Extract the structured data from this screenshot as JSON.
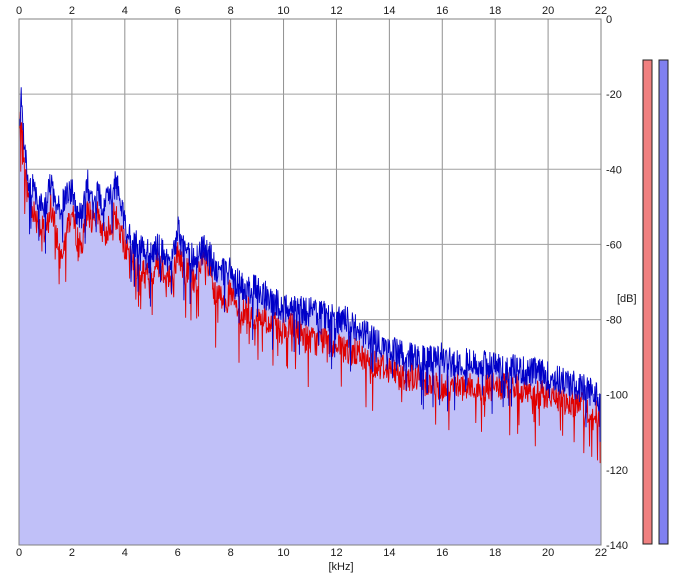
{
  "chart_data": {
    "type": "area",
    "xlabel": "[kHz]",
    "ylabel": "[dB]",
    "xlim": [
      0,
      22
    ],
    "ylim": [
      -140,
      0
    ],
    "x_ticks": [
      "0",
      "2",
      "4",
      "6",
      "8",
      "10",
      "12",
      "14",
      "16",
      "18",
      "20",
      "22"
    ],
    "y_ticks": [
      "0",
      "-20",
      "-40",
      "-60",
      "-80",
      "-100",
      "-120",
      "-140"
    ],
    "grid": true,
    "series": [
      {
        "channel": "left",
        "color": "#e00000",
        "x": [
          0.0,
          0.1,
          0.2,
          0.4,
          0.6,
          0.8,
          1.0,
          1.2,
          1.4,
          1.6,
          1.8,
          2.0,
          2.2,
          2.4,
          2.6,
          2.8,
          3.0,
          3.2,
          3.4,
          3.6,
          3.8,
          4.0,
          4.2,
          4.4,
          4.6,
          4.8,
          5.0,
          5.2,
          5.4,
          5.6,
          5.8,
          6.0,
          6.2,
          6.4,
          6.6,
          6.8,
          7.0,
          7.2,
          7.4,
          7.6,
          7.8,
          8.0,
          8.2,
          8.4,
          8.6,
          8.8,
          9.0,
          9.2,
          9.4,
          9.6,
          9.8,
          10.0,
          10.4,
          10.8,
          11.2,
          11.6,
          12.0,
          12.4,
          12.8,
          13.2,
          13.6,
          14.0,
          14.4,
          14.8,
          15.2,
          15.6,
          16.0,
          16.4,
          16.8,
          17.2,
          17.6,
          18.0,
          18.4,
          18.8,
          19.2,
          19.6,
          20.0,
          20.4,
          20.8,
          21.2,
          21.6,
          22.0
        ],
        "values": [
          -32,
          -24,
          -40,
          -48,
          -52,
          -55,
          -58,
          -50,
          -57,
          -62,
          -55,
          -52,
          -58,
          -60,
          -50,
          -55,
          -52,
          -58,
          -55,
          -52,
          -56,
          -60,
          -64,
          -66,
          -67,
          -68,
          -69,
          -64,
          -66,
          -68,
          -70,
          -62,
          -66,
          -67,
          -70,
          -68,
          -64,
          -67,
          -74,
          -74,
          -75,
          -73,
          -77,
          -78,
          -77,
          -79,
          -80,
          -79,
          -81,
          -82,
          -82,
          -83,
          -82,
          -84,
          -86,
          -85,
          -88,
          -88,
          -89,
          -91,
          -92,
          -93,
          -95,
          -95,
          -96,
          -97,
          -98,
          -97,
          -97,
          -98,
          -98,
          -98,
          -98,
          -98,
          -99,
          -100,
          -100,
          -101,
          -102,
          -103,
          -104,
          -106
        ]
      },
      {
        "channel": "right",
        "color": "#0000c8",
        "x": [
          0.0,
          0.1,
          0.2,
          0.4,
          0.6,
          0.8,
          1.0,
          1.2,
          1.4,
          1.6,
          1.8,
          2.0,
          2.2,
          2.4,
          2.6,
          2.8,
          3.0,
          3.2,
          3.4,
          3.6,
          3.8,
          4.0,
          4.2,
          4.4,
          4.6,
          4.8,
          5.0,
          5.2,
          5.4,
          5.6,
          5.8,
          6.0,
          6.2,
          6.4,
          6.6,
          6.8,
          7.0,
          7.2,
          7.4,
          7.6,
          7.8,
          8.0,
          8.2,
          8.4,
          8.6,
          8.8,
          9.0,
          9.2,
          9.4,
          9.6,
          9.8,
          10.0,
          10.4,
          10.8,
          11.2,
          11.6,
          12.0,
          12.4,
          12.8,
          13.2,
          13.6,
          14.0,
          14.4,
          14.8,
          15.2,
          15.6,
          16.0,
          16.4,
          16.8,
          17.2,
          17.6,
          18.0,
          18.4,
          18.8,
          19.2,
          19.6,
          20.0,
          20.4,
          20.8,
          21.2,
          21.6,
          22.0
        ],
        "values": [
          -28,
          -20,
          -36,
          -44,
          -46,
          -48,
          -50,
          -44,
          -48,
          -50,
          -47,
          -45,
          -52,
          -52,
          -44,
          -50,
          -46,
          -50,
          -48,
          -44,
          -46,
          -55,
          -58,
          -60,
          -60,
          -62,
          -63,
          -60,
          -62,
          -64,
          -64,
          -56,
          -61,
          -62,
          -64,
          -63,
          -60,
          -63,
          -66,
          -67,
          -68,
          -67,
          -70,
          -71,
          -72,
          -72,
          -72,
          -73,
          -74,
          -75,
          -76,
          -77,
          -76,
          -78,
          -78,
          -79,
          -80,
          -80,
          -83,
          -84,
          -86,
          -88,
          -89,
          -90,
          -90,
          -91,
          -90,
          -91,
          -91,
          -92,
          -92,
          -92,
          -93,
          -93,
          -94,
          -94,
          -95,
          -96,
          -97,
          -98,
          -99,
          -101
        ]
      }
    ],
    "level_meters": [
      {
        "channel": "left",
        "color": "#f08080"
      },
      {
        "channel": "right",
        "color": "#8080f0"
      }
    ]
  }
}
